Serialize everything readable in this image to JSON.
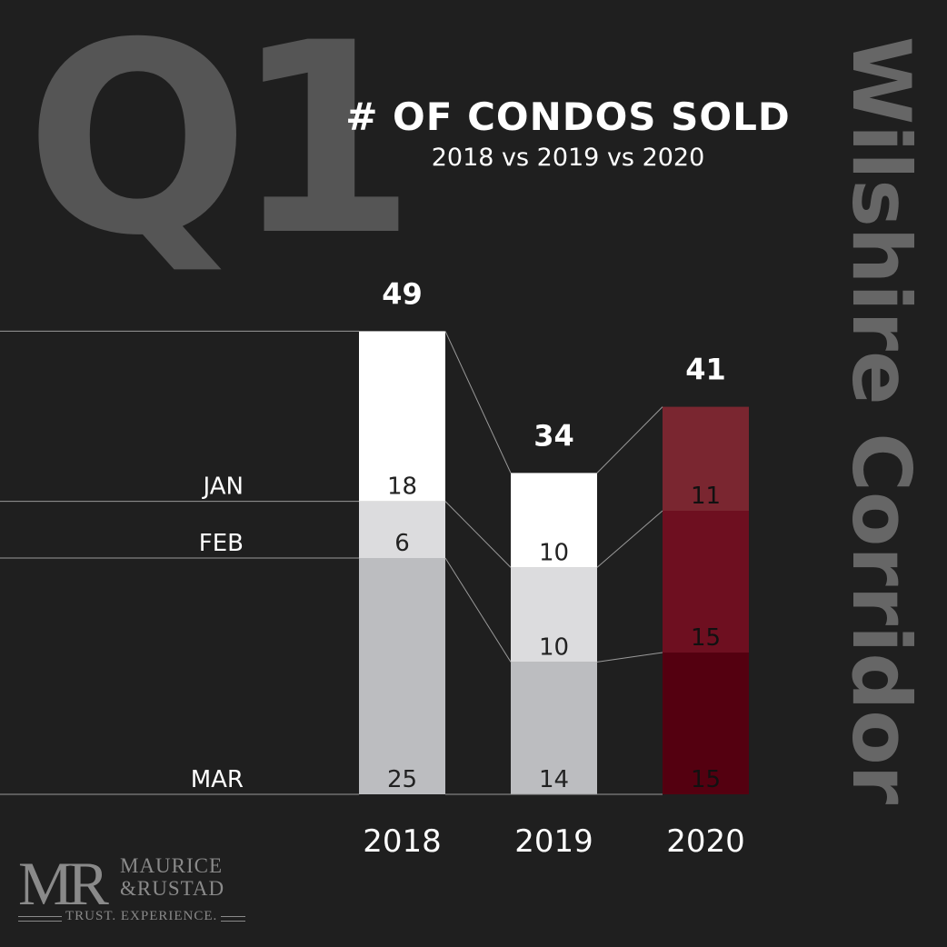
{
  "header": {
    "big_label": "Q1",
    "vertical_label": "Wilshire Corridor"
  },
  "logo": {
    "monogram": "MR",
    "name_line1": "MAURICE",
    "name_line2": "&RUSTAD",
    "tagline": "TRUST. EXPERIENCE."
  },
  "colors": {
    "background": "#1f1f1f",
    "jan_gray": "#ffffff",
    "feb_gray": "#dcdcde",
    "mar_gray": "#bcbdc0",
    "jan_red": "#7a2630",
    "feb_red": "#6e0f20",
    "mar_red": "#540010"
  },
  "chart_data": {
    "type": "bar",
    "stacked": true,
    "title": "# OF CONDOS SOLD",
    "subtitle": "2018 vs 2019 vs 2020",
    "categories": [
      "2018",
      "2019",
      "2020"
    ],
    "series": [
      {
        "name": "MAR",
        "values": [
          25,
          14,
          15
        ]
      },
      {
        "name": "FEB",
        "values": [
          6,
          10,
          15
        ]
      },
      {
        "name": "JAN",
        "values": [
          18,
          10,
          11
        ]
      }
    ],
    "totals": [
      49,
      34,
      41
    ],
    "ylim": [
      0,
      49
    ],
    "legend": "left, inline with 2018 segments"
  }
}
